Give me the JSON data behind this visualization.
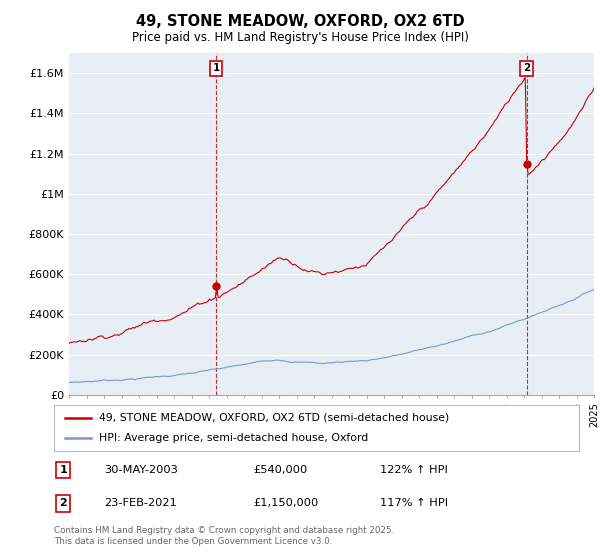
{
  "title": "49, STONE MEADOW, OXFORD, OX2 6TD",
  "subtitle": "Price paid vs. HM Land Registry's House Price Index (HPI)",
  "legend_line1": "49, STONE MEADOW, OXFORD, OX2 6TD (semi-detached house)",
  "legend_line2": "HPI: Average price, semi-detached house, Oxford",
  "annotation1_label": "1",
  "annotation1_date": "30-MAY-2003",
  "annotation1_price": "£540,000",
  "annotation1_hpi": "122% ↑ HPI",
  "annotation2_label": "2",
  "annotation2_date": "23-FEB-2021",
  "annotation2_price": "£1,150,000",
  "annotation2_hpi": "117% ↑ HPI",
  "footnote": "Contains HM Land Registry data © Crown copyright and database right 2025.\nThis data is licensed under the Open Government Licence v3.0.",
  "red_color": "#cc0000",
  "blue_color": "#7799cc",
  "chart_bg": "#e8eef5",
  "grid_color": "#ffffff",
  "background_color": "#ffffff",
  "ylim": [
    0,
    1700000
  ],
  "yticks": [
    0,
    200000,
    400000,
    600000,
    800000,
    1000000,
    1200000,
    1400000,
    1600000
  ],
  "ytick_labels": [
    "£0",
    "£200K",
    "£400K",
    "£600K",
    "£800K",
    "£1M",
    "£1.2M",
    "£1.4M",
    "£1.6M"
  ],
  "x_start_year": 1995,
  "x_end_year": 2025,
  "sale1_year": 2003.41,
  "sale1_value": 540000,
  "sale2_year": 2021.15,
  "sale2_value": 1150000,
  "vline1_year": 2003.41,
  "vline2_year": 2021.15
}
